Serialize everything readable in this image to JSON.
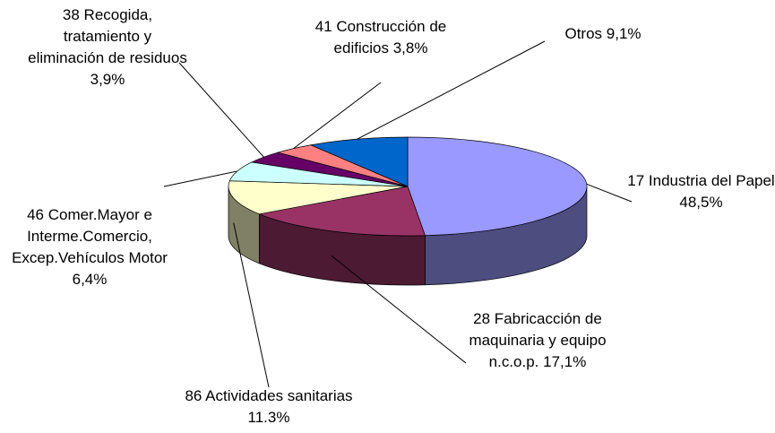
{
  "chart_data": {
    "type": "pie3d",
    "categories": [
      "17 Industria del Papel",
      "28 Fabricacción de maquinaria y equipo n.c.o.p.",
      "86 Actividades sanitarias",
      "46 Comer.Mayor e Interme.Comercio, Excep.Vehículos Motor",
      "38 Recogida, tratamiento y eliminación de residuos",
      "41 Construcción de edificios",
      "Otros"
    ],
    "values": [
      48.5,
      17.1,
      11.3,
      6.4,
      3.9,
      3.8,
      9.1
    ],
    "value_labels": [
      "48,5%",
      "17,1%",
      "11.3%",
      "6,4%",
      "3,9%",
      "3,8%",
      "9,1%"
    ],
    "colors": [
      "#9999ff",
      "#993366",
      "#ffffcc",
      "#ccffff",
      "#660066",
      "#ff8080",
      "#0066cc"
    ]
  }
}
